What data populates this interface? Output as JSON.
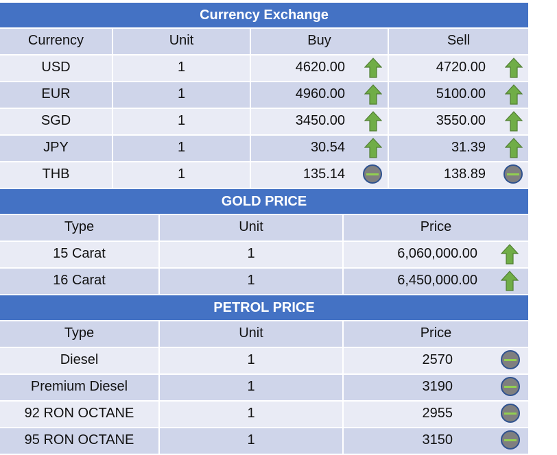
{
  "currency": {
    "title": "Currency Exchange",
    "headers": [
      "Currency",
      "Unit",
      "Buy",
      "Sell"
    ],
    "rows": [
      {
        "name": "USD",
        "unit": "1",
        "buy": "4620.00",
        "buy_trend": "up-arrow-icon",
        "sell": "4720.00",
        "sell_trend": "up-arrow-icon"
      },
      {
        "name": "EUR",
        "unit": "1",
        "buy": "4960.00",
        "buy_trend": "up-arrow-icon",
        "sell": "5100.00",
        "sell_trend": "up-arrow-icon"
      },
      {
        "name": "SGD",
        "unit": "1",
        "buy": "3450.00",
        "buy_trend": "up-arrow-icon",
        "sell": "3550.00",
        "sell_trend": "up-arrow-icon"
      },
      {
        "name": "JPY",
        "unit": "1",
        "buy": "30.54",
        "buy_trend": "up-arrow-icon",
        "sell": "31.39",
        "sell_trend": "up-arrow-icon"
      },
      {
        "name": "THB",
        "unit": "1",
        "buy": "135.14",
        "buy_trend": "no-change-icon",
        "sell": "138.89",
        "sell_trend": "no-change-icon"
      }
    ]
  },
  "gold": {
    "title": "GOLD PRICE",
    "headers": [
      "Type",
      "Unit",
      "Price"
    ],
    "rows": [
      {
        "type": "15 Carat",
        "unit": "1",
        "price": "6,060,000.00",
        "trend": "up-arrow-icon"
      },
      {
        "type": "16 Carat",
        "unit": "1",
        "price": "6,450,000.00",
        "trend": "up-arrow-icon"
      }
    ]
  },
  "petrol": {
    "title": "PETROL PRICE",
    "headers": [
      "Type",
      "Unit",
      "Price"
    ],
    "rows": [
      {
        "type": "Diesel",
        "unit": "1",
        "price": "2570",
        "trend": "no-change-icon"
      },
      {
        "type": "Premium Diesel",
        "unit": "1",
        "price": "3190",
        "trend": "no-change-icon"
      },
      {
        "type": "92 RON OCTANE",
        "unit": "1",
        "price": "2955",
        "trend": "no-change-icon"
      },
      {
        "type": "95 RON OCTANE",
        "unit": "1",
        "price": "3150",
        "trend": "no-change-icon"
      }
    ]
  },
  "colors": {
    "header_blue": "#4472c4",
    "band_dark": "#cfd5ea",
    "band_light": "#e9ebf5",
    "arrow_green": "#70ad47",
    "neutral_gray": "#7f7f7f"
  }
}
